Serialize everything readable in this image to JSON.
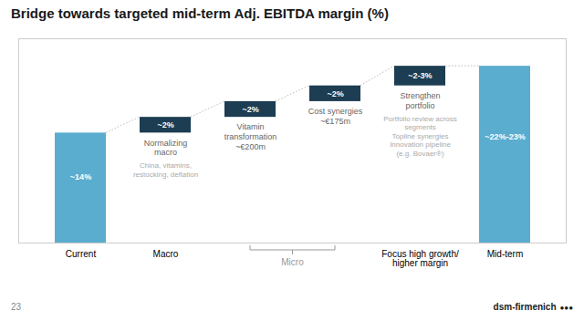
{
  "chart_data": {
    "type": "waterfall",
    "title": "Bridge towards targeted mid-term Adj. EBITDA margin (%)",
    "categories": [
      "Current",
      "Macro",
      null,
      null,
      "Focus high growth/\nhigher margin",
      "Mid-term"
    ],
    "values": [
      14,
      2,
      2,
      2,
      2.5,
      22.5
    ],
    "totals": [
      true,
      false,
      false,
      false,
      false,
      true
    ],
    "value_labels": [
      "~14%",
      "~2%",
      "~2%",
      "~2%",
      "~2-3%",
      "~22%-23%"
    ],
    "data_labels": true,
    "colors": [
      "#5aadcf",
      "#1c3d52",
      "#1c3d52",
      "#1c3d52",
      "#1c3d52",
      "#5aadcf"
    ],
    "ylim": [
      0,
      26
    ],
    "tick_labels": "x",
    "grid": false,
    "sub_labels": [
      null,
      "Normalizing\nmacro",
      "Vitamin\ntransformation\n~€200m",
      "Cost synergies\n~€175m",
      "Strengthen\nportfolio",
      null
    ],
    "notes": [
      null,
      "China, vitamins,\nrestocking, deflation",
      null,
      null,
      "Portfolio review across\nsegments\nTopline synergies\nInnovation pipeline\n(e.g. Bovaer®)",
      null
    ],
    "group_label": {
      "text": "Micro",
      "from": 2,
      "to": 3
    },
    "footer": [
      "23",
      "dsm-firmenich",
      "●●●"
    ]
  }
}
